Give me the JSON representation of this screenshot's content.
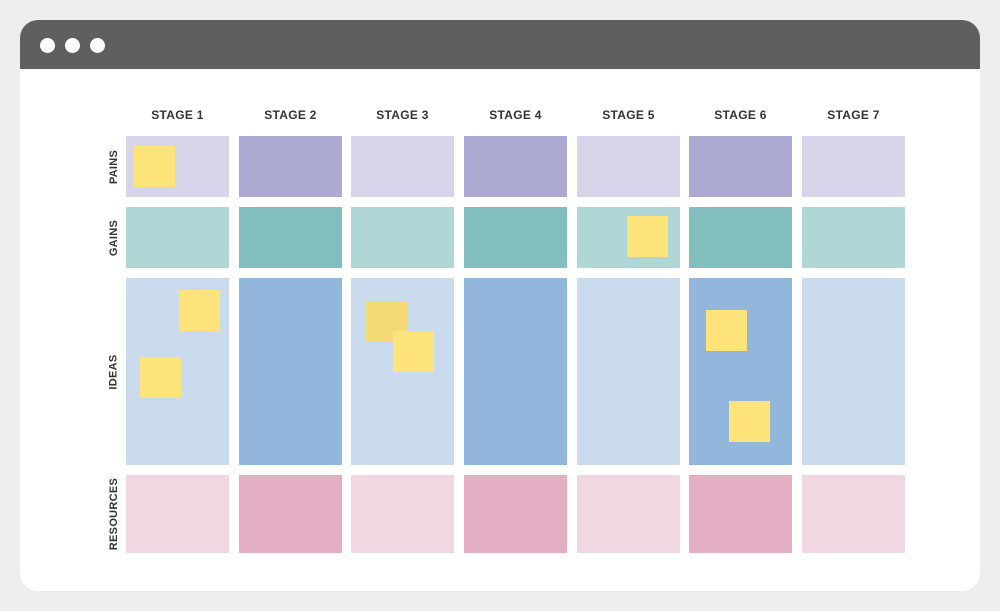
{
  "window": {
    "controls": [
      "dot",
      "dot",
      "dot"
    ]
  },
  "board": {
    "stages": [
      "STAGE 1",
      "STAGE 2",
      "STAGE 3",
      "STAGE 4",
      "STAGE 5",
      "STAGE 6",
      "STAGE 7"
    ],
    "rows": [
      {
        "label": "PAINS",
        "light": "#d8d5ea",
        "dark": "#aca9d2"
      },
      {
        "label": "GAINS",
        "light": "#b0d6d5",
        "dark": "#82bebd"
      },
      {
        "label": "IDEAS",
        "light": "#c9dbec",
        "dark": "#93b6dc"
      },
      {
        "label": "RESOURCES",
        "light": "#f1d7e2",
        "dark": "#e4afc4"
      }
    ],
    "colors": {
      "titlebar": "#5f5f5f",
      "background": "#eeeeee",
      "sticky": "#fee27a",
      "sticky_dim": "#f4d975"
    },
    "sticky_count": 8
  }
}
